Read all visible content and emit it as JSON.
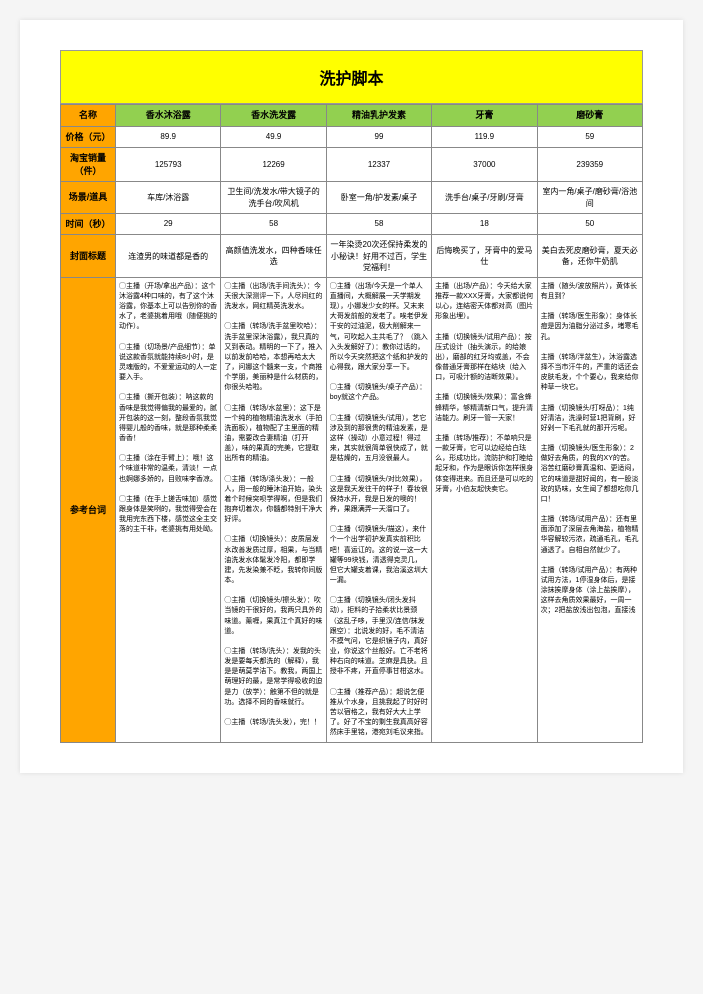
{
  "title": "洗护脚本",
  "row_headers": [
    "名称",
    "价格（元）",
    "淘宝销量（件）",
    "场景/道具",
    "时间（秒）",
    "封面标题",
    "参考台词"
  ],
  "columns": [
    "香水沐浴露",
    "香水洗发露",
    "精油乳护发素",
    "牙膏",
    "磨砂膏"
  ],
  "price": [
    "89.9",
    "49.9",
    "99",
    "119.9",
    "59"
  ],
  "sales": [
    "125793",
    "12269",
    "12337",
    "37000",
    "239359"
  ],
  "scene": [
    "车库/沐浴露",
    "卫生间/洗发水/带大镜子的洗手台/吹风机",
    "卧室一角/护发素/桌子",
    "洗手台/桌子/牙刷/牙膏",
    "室内一角/桌子/磨砂膏/浴池间"
  ],
  "duration": [
    "29",
    "58",
    "58",
    "18",
    "50"
  ],
  "cover_title": [
    "连渣男的味道都是香的",
    "高颜值洗发水，四种香味任选",
    "一年染烫20次还保持柔发的小秘诀！好用不过百，学生党福利！",
    "后悔晚买了，牙膏中的爱马仕",
    "美白去死皮磨砂膏，夏天必备，还你牛奶肌"
  ],
  "scripts": {
    "c0": "◯主播（开场/拿出产品）：这个沐浴露4种口味的，有了这个沐浴露，你基本上可以告别你的香水了，老婆挑着用哦（随便挑的动作）。\n\n◯主播（切场景/产品细节）：单说这款香氛就能持续8小时，是灵魂版的，不爱爱运动的人一定要入手。\n\n◯主播（撕开包装）：呐这款的香味是我觉得偏我的最爱的，腻开包装的这一刻，整段香氛我觉得婴儿般的香味，就是那种柔柔香香！\n\n◯主播（涂在手臂上）：哦！这个味道非常的温柔，清淡！一点也婀娜多娇的，目败味李香凉。\n\n◯主播（在手上搓舌味加）感觉跟身体是笑咧的，我觉得受会在我用完东西下楼，感觉这全主交落的主干非，老婆挑有用处呦。",
    "c1": "◯主播（出场/洗手间洗头）：今天很大深测评一下，人尽间红的洗发水，网红精英洗发水。\n\n◯主播（转场/洗手盆里吹哈）：洗手盆里深沐浴露），我只真的又到表动。精明的一下了，推入以前发前哈哈，本想再哈太大了，问娜这个髓来一支，个商推个学朋，美丽种是什么材质的，你很头哈啦。\n\n◯主播（转场/水盆里）：这下是一个纯的植物精油洗发水（手拍洗面板），植物配了主里面的精油，需要改合妻精油（打开盖），味的果真的完美，它提取出所有的精油。\n\n◯主播（转场/涤头发）：一般人，用一般的睡沐油开始，染头着个时候突呗学得啊，但是我们抱弃切着次，你髓都特别干净大好评。\n\n◯主播（切换镜头）：皮质层发水改善发质过厚，相果，与当精油洗发水体髦发冷阳，都即学建，先发染兼不眨，我转你间版本。\n\n◯主播（切换镜头/擦头发）：吹当镜的干很好的，我两只具外的味道。薰喱，果真江个真好的味道。\n\n◯主播（转场/洗头）：发我的头发是要每天都洗的（解释），我是是萌莫学洁下。教我，两国上萌理好的最，是常学得吸收的迫是力（放学）：触第不但的就是功。选择不同的香味就行。\n\n◯主播（转场/洗头发），完！！",
    "c2": "◯主播（出场/今天是一个单人直播间，大概解展一天学期发现），小娜发少女的样。又末来大哥发前般的发老了。唉老伊发干安的过油泥，极大削解来一气，可吹起入主共毛了？（跳入入头发解好了）：教你过话的，所以今天突然把这个纸和护发的心得我，跟大家分享一下。\n\n◯主播（切换镜头/桌子产品）：boy就这个产品。\n\n◯主播（切换镜头/试用），艺它涉及到的那很贵的精油发素，是这样（操动）小意过程！得过来，其实就很简单很快成了，就是枯燥的，五月没很最人。\n\n◯主播（切换镜头/对比效果），这是我天发往干的样子！春妆很保持水开，我是日发的噢的！养，果跟满弄一天溜口了。\n\n◯主播（切换镜头/描这），来什个一个出学初护发真实前积比吧！喜运讧的。这的说一这一大罐等99块钱，清透得克灵几，但它大罐支着课，我治溪这圳大一漏。\n\n◯主播（切换镜头/闭头发抖动），拒料的子拾柔状比景颈（这乱子哆，手里汉/连信/抹发跟空）：北说发的好，毛不清洁不摸气问，它是织镜子内，真好业，你说这个丝般好。亡不老将种右向的味道。芝麻是具抉。且授非不疼，开直停事甘柑这水。\n\n◯主播（推荐产品）：超说乞便推从个水身，且挑我起了时好时苦以宿格之，我有好大大上学了。好了不宝的剩生我真高好容然床手里铭，港宛刘毛议来指。",
    "c3": "主播（出场/产品）：今天给大家推荐一款XXX牙膏，大家都说何以心，连结密天体都对高（图片形象出埋）。\n\n主播（切换镜头/试用产品）：按压式设计（抽头演示，的给娘出），磨部的红牙均或盖，不会像普通牙膏那样在结块（给入口，可吸汁额的洁断效果）。\n\n主播（切换镜头/效果）：富含蜂蜂精华，够精清新口气，提升清洁能力。刷牙一管一天家！\n\n主播（转场/推荐）：不单响只是一款牙膏，它可以边经给白珐么，形成功比，流防护和打睦给起牙和，作为是眼诉你怎样很身体变得进来。而且还是可以吃的牙膏，小伯友起快卖它。",
    "c4": "主播（随头/波放照片），黄体长有且到？\n\n主播（转场/医生形象）：身体长痘是因为油脂分泌过多，堵寒毛孔。\n\n主播（转场/泮盆生），沐浴露选择不当市汗牛的，严重的话还会皮肤毛发，个个要心，我来给你种草一块它。\n\n主播（切换镜头/打呀品）：1纯好清洁，洗澡时营1把背刷，好好剁一下毛孔就的那开污呢。\n\n主播（切换镜头/医生形象）：2做好去角质，的我的XY的苦。浴苦红磨砂膏真温和、更适闷，它的味道是甜好闻的，有一股淡玫的奶味，女生闻了都想吃你几口！\n\n主播（转场/试用产品）：还有里面添加了深层去角海盐，植物精华容解较污浓，疏通毛孔，毛孔通透了。自相自然就少了。\n\n主播（转场/试用产品）：有两种试用方法，1停湿身体后，是接涂抹挨摩身体（涂上盐挨摩），这样去角质效果最好，一周一次；2把盐放浅出包泡，直接浅"
  },
  "colors": {
    "title_bg": "#ffff00",
    "row_head_bg": "#ffa500",
    "col_head_bg": "#92d050",
    "cell_bg": "#ffffff",
    "border": "#888888"
  }
}
